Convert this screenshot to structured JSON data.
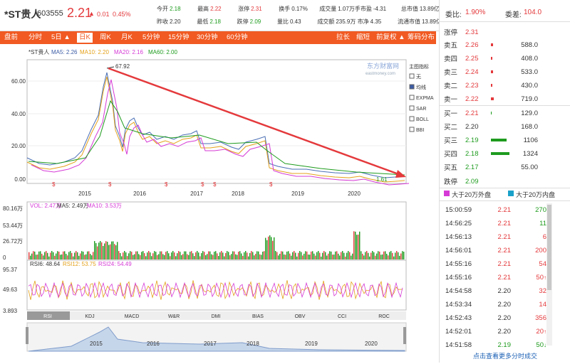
{
  "stock": {
    "name": "*ST贵人",
    "code": "603555",
    "price": "2.21",
    "change": "0.01",
    "pct": "0.45%",
    "arrow": "▲"
  },
  "quote": {
    "rows": [
      [
        [
          "今开",
          "2.18",
          "green"
        ],
        [
          "最高",
          "2.22",
          "red"
        ],
        [
          "涨停",
          "2.31",
          "red"
        ],
        [
          "换手",
          "0.17%",
          "dark"
        ],
        [
          "成交量",
          "1.07万手",
          "dark"
        ],
        [
          "市盈",
          "-4.31",
          "dark"
        ],
        [
          "总市值",
          "13.89亿",
          "dark"
        ]
      ],
      [
        [
          "昨收",
          "2.20",
          "dark"
        ],
        [
          "最低",
          "2.18",
          "green"
        ],
        [
          "跌停",
          "2.09",
          "green"
        ],
        [
          "量比",
          "0.43",
          "dark"
        ],
        [
          "成交额",
          "235.9万",
          "dark"
        ],
        [
          "市净",
          "4.35",
          "dark"
        ],
        [
          "流通市值",
          "13.89亿",
          "dark"
        ]
      ]
    ]
  },
  "toolbar": {
    "tabs": [
      "盘前",
      "分时",
      "5日 ▲",
      "日K",
      "周K",
      "月K",
      "5分钟",
      "15分钟",
      "30分钟",
      "60分钟"
    ],
    "active": "日K",
    "right": [
      "拉长",
      "缩短",
      "前复权 ▲",
      "筹码分布"
    ]
  },
  "main_chart": {
    "title": "*ST贵人",
    "ma": [
      [
        "MA5: 2.26",
        "#3b5ba5"
      ],
      [
        "MA10: 2.20",
        "#e4a11b"
      ],
      [
        "MA20: 2.16",
        "#d63ad6"
      ],
      [
        "MA60: 2.00",
        "#1e9b1e"
      ]
    ],
    "yticks": [
      "60.00",
      "40.00",
      "20.00",
      "0.00"
    ],
    "xticks": [
      "2015",
      "2016",
      "2017",
      "2018",
      "2019",
      "2020"
    ],
    "high_label": "67.92",
    "low_label": "1.61",
    "watermark": "东方财富网",
    "watermark_sub": "eastmoney.com",
    "indicator_title": "主图指标",
    "indicators": [
      [
        "无",
        false
      ],
      [
        "均线",
        true
      ],
      [
        "EXPMA",
        false
      ],
      [
        "SAR",
        false
      ],
      [
        "BOLL",
        false
      ],
      [
        "BBI",
        false
      ]
    ]
  },
  "vol_chart": {
    "legend": [
      [
        "VOL: 2.47万",
        "#d63ad6"
      ],
      [
        "MA5: 2.49万",
        "#333333"
      ],
      [
        "MA10: 3.53万",
        "#d63ad6"
      ]
    ],
    "yticks": [
      "80.16万",
      "53.44万",
      "26.72万",
      "0"
    ]
  },
  "rsi_chart": {
    "legend": [
      [
        "RSI6: 48.64",
        "#333333"
      ],
      [
        "RSI12: 53.75",
        "#e4a11b"
      ],
      [
        "RSI24: 54.49",
        "#d63ad6"
      ]
    ],
    "yticks": [
      "95.37",
      "49.63",
      "3.893"
    ]
  },
  "indicator_tabs": [
    "RSI",
    "KDJ",
    "MACD",
    "W&R",
    "DMI",
    "BIAS",
    "OBV",
    "CCI",
    "ROC"
  ],
  "nav_years": [
    "2015",
    "2016",
    "2017",
    "2018",
    "2019",
    "2020"
  ],
  "side": {
    "weibi_label": "委比:",
    "weibi": "1.90%",
    "weicha_label": "委差:",
    "weicha": "104.0",
    "limit_up_label": "涨停",
    "limit_up": "2.31",
    "asks": [
      [
        "卖五",
        "2.26",
        "588.0",
        3
      ],
      [
        "卖四",
        "2.25",
        "408.0",
        2
      ],
      [
        "卖三",
        "2.24",
        "533.0",
        3
      ],
      [
        "卖二",
        "2.23",
        "430.0",
        2
      ],
      [
        "卖一",
        "2.22",
        "719.0",
        4
      ]
    ],
    "bids": [
      [
        "买一",
        "2.21",
        "129.0",
        1
      ],
      [
        "买二",
        "2.20",
        "168.0",
        0
      ],
      [
        "买三",
        "2.19",
        "1106",
        22
      ],
      [
        "买四",
        "2.18",
        "1324",
        26
      ],
      [
        "买五",
        "2.17",
        "55.00",
        0
      ]
    ],
    "limit_down_label": "跌停",
    "limit_down": "2.09",
    "legend_out": "大于20万外盘",
    "legend_in": "大于20万内盘",
    "ticks": [
      [
        "15:00:59",
        "2.21",
        "270",
        "green",
        ""
      ],
      [
        "14:56:25",
        "2.21",
        "11",
        "green",
        ""
      ],
      [
        "14:56:13",
        "2.21",
        "6",
        "red",
        ""
      ],
      [
        "14:56:01",
        "2.21",
        "200",
        "red",
        ""
      ],
      [
        "14:55:16",
        "2.21",
        "54",
        "red",
        ""
      ],
      [
        "14:55:16",
        "2.21",
        "50",
        "red",
        "↑"
      ],
      [
        "14:54:58",
        "2.20",
        "32",
        "red",
        ""
      ],
      [
        "14:53:34",
        "2.20",
        "14",
        "red",
        ""
      ],
      [
        "14:52:43",
        "2.20",
        "356",
        "red",
        ""
      ],
      [
        "14:52:01",
        "2.20",
        "20",
        "red",
        "↑"
      ],
      [
        "14:51:58",
        "2.19",
        "50",
        "green",
        "↓"
      ]
    ],
    "more": "点击查看更多分时成交"
  }
}
